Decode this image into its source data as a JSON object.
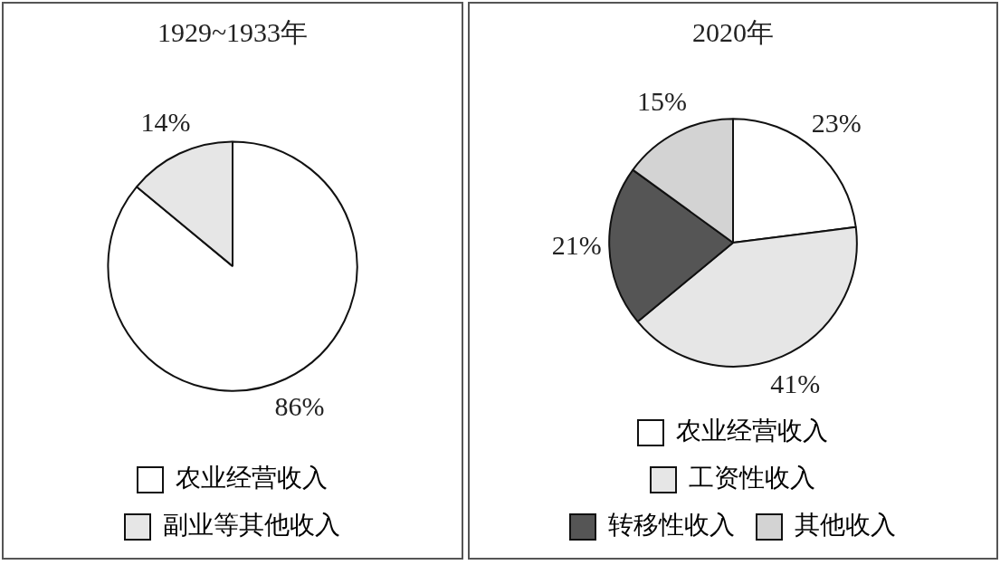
{
  "chart_data": [
    {
      "type": "pie",
      "title": "1929~1933年",
      "categories": [
        "农业经营收入",
        "副业等其他收入"
      ],
      "values": [
        86,
        14
      ],
      "colors": [
        "#ffffff",
        "#e6e6e6"
      ],
      "value_labels": [
        "86%",
        "14%"
      ],
      "legend": "bottom"
    },
    {
      "type": "pie",
      "title": "2020年",
      "categories": [
        "农业经营收入",
        "工资性收入",
        "转移性收入",
        "其他收入"
      ],
      "values": [
        23,
        41,
        21,
        15
      ],
      "colors": [
        "#ffffff",
        "#e6e6e6",
        "#555555",
        "#d3d3d3"
      ],
      "value_labels": [
        "23%",
        "41%",
        "21%",
        "15%"
      ],
      "legend": "bottom"
    }
  ]
}
